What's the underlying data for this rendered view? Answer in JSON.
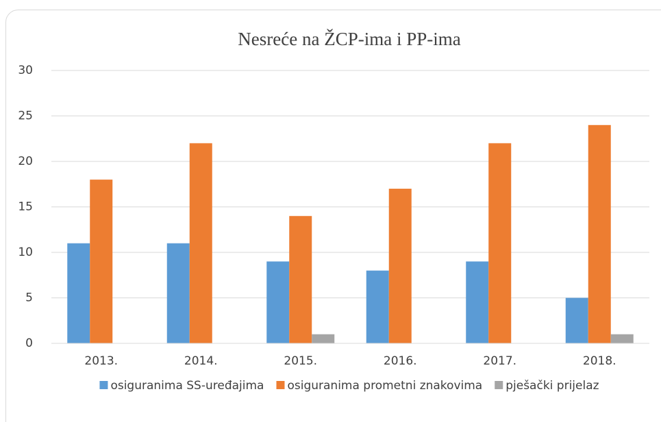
{
  "chart_data": {
    "type": "bar",
    "title": "Nesreće na ŽCP-ima i PP-ima",
    "categories": [
      "2013.",
      "2014.",
      "2015.",
      "2016.",
      "2017.",
      "2018."
    ],
    "series": [
      {
        "name": "osiguranima SS-uređajima",
        "color": "#5b9bd5",
        "values": [
          11,
          11,
          9,
          8,
          9,
          5
        ]
      },
      {
        "name": "osiguranima prometni znakovima",
        "color": "#ed7d31",
        "values": [
          18,
          22,
          14,
          17,
          22,
          24
        ]
      },
      {
        "name": "pješački prijelaz",
        "color": "#a5a5a5",
        "values": [
          0,
          0,
          1,
          0,
          0,
          1
        ]
      }
    ],
    "ylim": [
      0,
      30
    ],
    "yticks": [
      0,
      5,
      10,
      15,
      20,
      25,
      30
    ],
    "grid": true,
    "legend": "bottom"
  }
}
